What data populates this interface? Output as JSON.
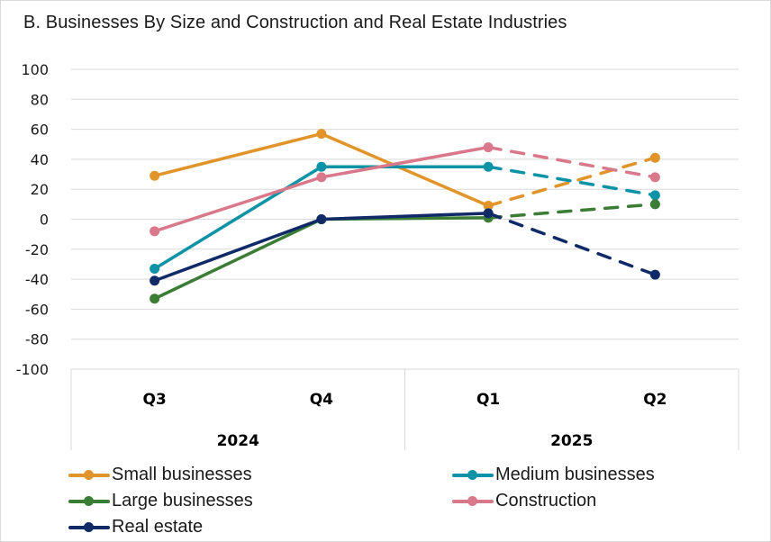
{
  "chart_data": {
    "type": "line",
    "title": "B. Businesses By Size and Construction and Real Estate Industries",
    "xlabel": "",
    "ylabel": "",
    "ylim": [
      -100,
      100
    ],
    "yticks": [
      "100",
      "80",
      "60",
      "40",
      "20",
      "0",
      "-20",
      "-40",
      "-60",
      "-80",
      "-100"
    ],
    "ytick_values": [
      100,
      80,
      60,
      40,
      20,
      0,
      -20,
      -40,
      -60,
      -80,
      -100
    ],
    "categories": [
      "Q3",
      "Q4",
      "Q1",
      "Q2"
    ],
    "category_groups": [
      {
        "label": "2024",
        "categories": [
          "Q3",
          "Q4"
        ]
      },
      {
        "label": "2025",
        "categories": [
          "Q1",
          "Q2"
        ]
      }
    ],
    "grid": true,
    "legend_position": "bottom",
    "dashed_segment_note": "Segment from Q1 to Q2 drawn dashed (projection)",
    "series": [
      {
        "name": "Small businesses",
        "color": "#e0942a",
        "values": [
          29,
          57,
          9,
          41
        ]
      },
      {
        "name": "Medium businesses",
        "color": "#0e93a6",
        "values": [
          -33,
          35,
          35,
          16
        ]
      },
      {
        "name": "Large businesses",
        "color": "#3b7d35",
        "values": [
          -53,
          0,
          1,
          10
        ]
      },
      {
        "name": "Construction",
        "color": "#d9788a",
        "values": [
          -8,
          28,
          48,
          28
        ]
      },
      {
        "name": "Real estate",
        "color": "#0f2a66",
        "values": [
          -41,
          0,
          4,
          -37
        ]
      }
    ]
  }
}
